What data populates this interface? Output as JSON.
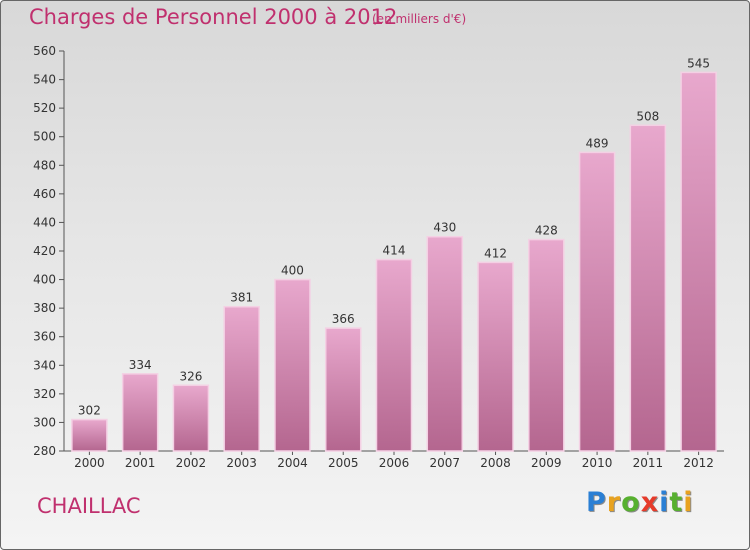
{
  "title": "Charges de Personnel 2000 à 2012",
  "subtitle": "(en milliers d'€)",
  "commune": "CHAILLAC",
  "logo": {
    "letters": [
      "P",
      "r",
      "o",
      "x",
      "i",
      "t",
      "i"
    ],
    "colors": [
      "#2a7fd4",
      "#e8a21f",
      "#57b02f",
      "#e63b2a",
      "#2a7fd4",
      "#57b02f",
      "#e8a21f"
    ]
  },
  "colors": {
    "accent": "#c0306e",
    "bar_top": "#e8a8cd",
    "bar_bottom": "#b4668f",
    "bar_edge": "#f4d0e4"
  },
  "chart_data": {
    "type": "bar",
    "categories": [
      "2000",
      "2001",
      "2002",
      "2003",
      "2004",
      "2005",
      "2006",
      "2007",
      "2008",
      "2009",
      "2010",
      "2011",
      "2012"
    ],
    "values": [
      302,
      334,
      326,
      381,
      400,
      366,
      414,
      430,
      412,
      428,
      489,
      508,
      545
    ],
    "data_labels": [
      "302",
      "334",
      "326",
      "381",
      "400",
      "366",
      "414",
      "430",
      "412",
      "428",
      "489",
      "508",
      "545"
    ],
    "ylim": [
      280,
      560
    ],
    "yticks": [
      "280",
      "300",
      "320",
      "340",
      "360",
      "380",
      "400",
      "420",
      "440",
      "460",
      "480",
      "500",
      "520",
      "540",
      "560"
    ],
    "grid": false,
    "legend": "none"
  }
}
